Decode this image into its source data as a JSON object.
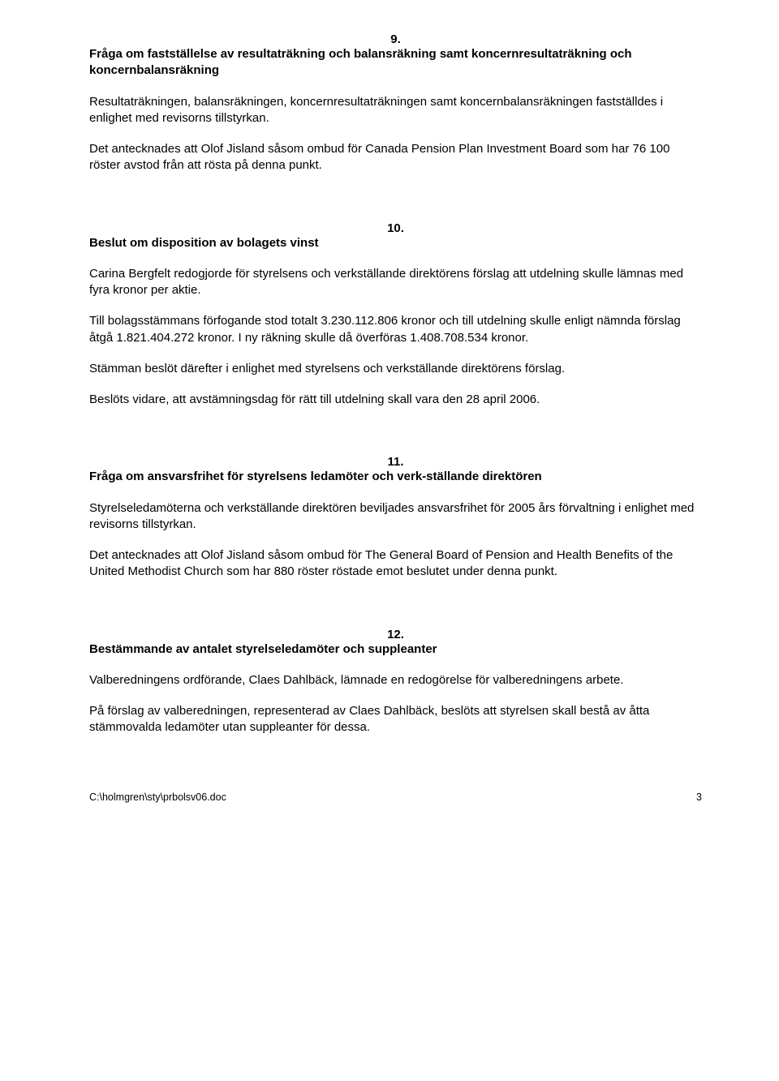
{
  "sec9": {
    "num": "9.",
    "title": "Fråga om fastställelse av resultaträkning och balansräkning samt koncernresultaträkning och koncernbalansräkning",
    "p1": "Resultaträkningen, balansräkningen, koncernresultaträkningen samt koncernbalansräkningen fastställdes i enlighet med revisorns tillstyrkan.",
    "p2": "Det antecknades att Olof Jisland såsom ombud för Canada Pension Plan Investment Board som har 76 100 röster avstod från att rösta på denna punkt."
  },
  "sec10": {
    "num": "10.",
    "title": "Beslut om disposition av bolagets vinst",
    "p1": "Carina Bergfelt redogjorde för styrelsens och verkställande direktörens förslag att utdelning skulle lämnas med fyra kronor per aktie.",
    "p2": "Till bolagsstämmans förfogande stod totalt 3.230.112.806 kronor och till utdelning skulle enligt nämnda förslag åtgå 1.821.404.272 kronor. I ny räkning skulle då överföras 1.408.708.534 kronor.",
    "p3": "Stämman beslöt därefter i enlighet med styrelsens och verkställande direktörens förslag.",
    "p4": "Beslöts vidare, att avstämningsdag för rätt till utdelning skall vara den 28 april 2006."
  },
  "sec11": {
    "num": "11.",
    "title": "Fråga om ansvarsfrihet för styrelsens ledamöter och verk-ställande direktören",
    "p1": "Styrelseledamöterna och verkställande direktören beviljades ansvarsfrihet för 2005 års förvaltning i enlighet med revisorns tillstyrkan.",
    "p2": "Det antecknades att Olof Jisland såsom ombud för The General Board of Pension and Health Benefits of the United Methodist Church som har 880 röster röstade emot beslutet under denna punkt."
  },
  "sec12": {
    "num": "12.",
    "title": "Bestämmande av antalet styrelseledamöter och suppleanter",
    "p1": "Valberedningens ordförande, Claes Dahlbäck, lämnade en redogörelse för valberedningens arbete.",
    "p2": "På förslag av valberedningen, representerad av Claes Dahlbäck, beslöts att styrelsen skall bestå av åtta stämmovalda ledamöter utan suppleanter för dessa."
  },
  "footer": {
    "path": "C:\\holmgren\\sty\\prbolsv06.doc",
    "page": "3"
  }
}
